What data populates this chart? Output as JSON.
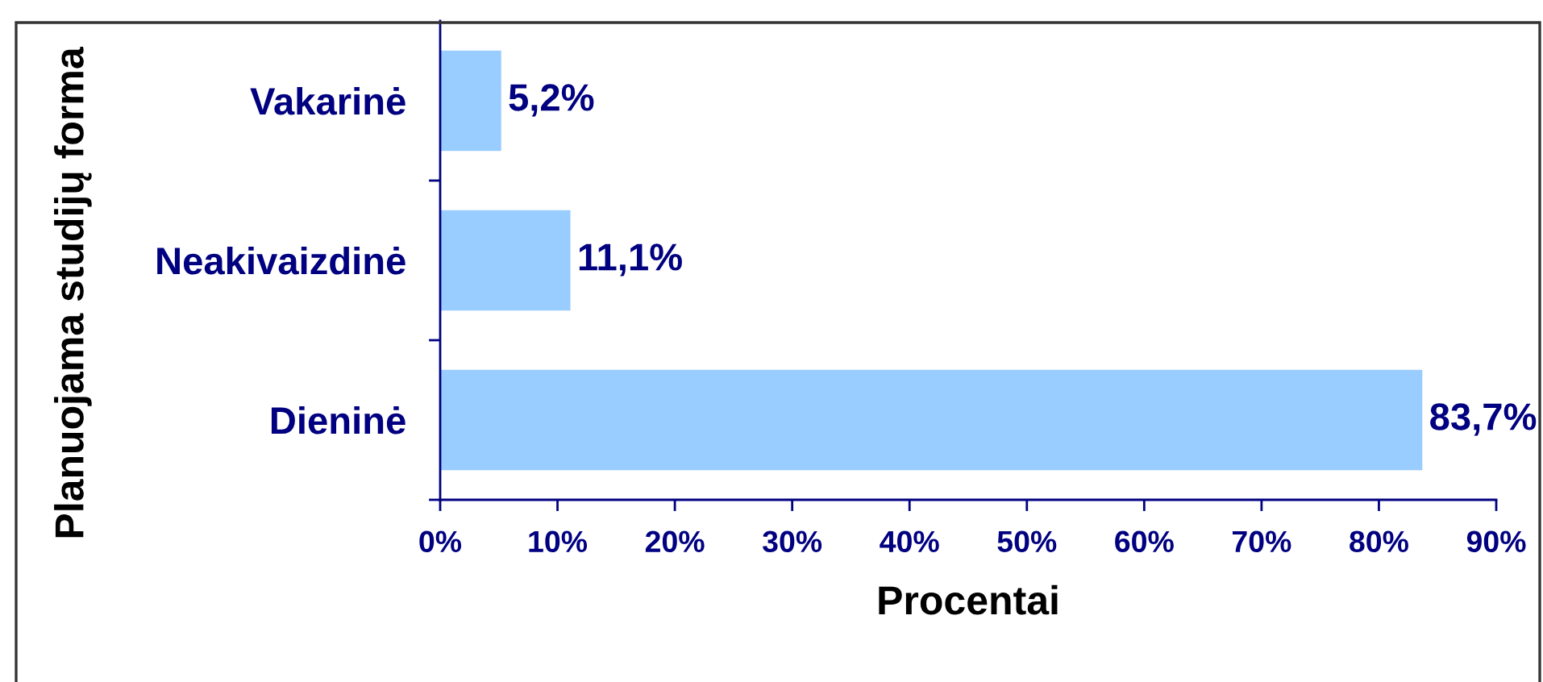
{
  "chart_data": {
    "type": "bar",
    "orientation": "horizontal",
    "xlabel": "Procentai",
    "ylabel": "Planuojama studijų forma",
    "categories": [
      "Vakarinė",
      "Neakivaizdinė",
      "Dieninė"
    ],
    "values": [
      5.2,
      11.1,
      83.7
    ],
    "value_labels": [
      "5,2%",
      "11,1%",
      "83,7%"
    ],
    "color": "#99ccff",
    "xlim": [
      0,
      90
    ],
    "xticks": [
      {
        "value": 0,
        "label": "0%"
      },
      {
        "value": 10,
        "label": "10%"
      },
      {
        "value": 20,
        "label": "20%"
      },
      {
        "value": 30,
        "label": "30%"
      },
      {
        "value": 40,
        "label": "40%"
      },
      {
        "value": 50,
        "label": "50%"
      },
      {
        "value": 60,
        "label": "60%"
      },
      {
        "value": 70,
        "label": "70%"
      },
      {
        "value": 80,
        "label": "80%"
      },
      {
        "value": 90,
        "label": "90%"
      }
    ],
    "grid": false
  }
}
